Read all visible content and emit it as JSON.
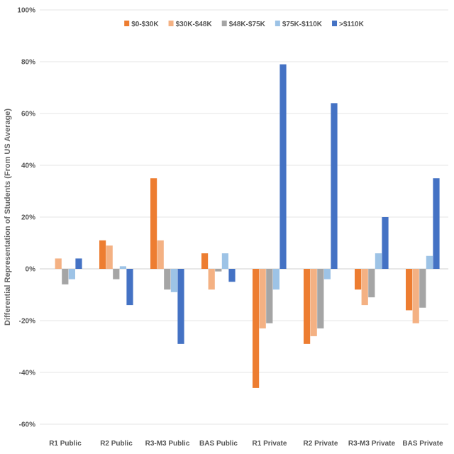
{
  "chart_data": {
    "type": "bar",
    "title": "",
    "xlabel": "",
    "ylabel": "Differential Representation of Students (From US Average)",
    "ylim": [
      -60,
      100
    ],
    "yticks": [
      -60,
      -40,
      -20,
      0,
      20,
      40,
      60,
      80,
      100
    ],
    "ytick_labels": [
      "-60%",
      "-40%",
      "-20%",
      "0%",
      "20%",
      "40%",
      "60%",
      "80%",
      "100%"
    ],
    "grid": true,
    "legend_position": "top",
    "categories": [
      "R1 Public",
      "R2 Public",
      "R3-M3 Public",
      "BAS Public",
      "R1 Private",
      "R2 Private",
      "R3-M3 Private",
      "BAS Private"
    ],
    "series": [
      {
        "name": "$0-$30K",
        "color": "#ed7d31",
        "values": [
          0,
          11,
          35,
          6,
          -46,
          -29,
          -8,
          -16
        ]
      },
      {
        "name": "$30K-$48K",
        "color": "#f4b183",
        "values": [
          4,
          9,
          11,
          -8,
          -23,
          -26,
          -14,
          -21
        ]
      },
      {
        "name": "$48K-$75K",
        "color": "#a5a5a5",
        "values": [
          -6,
          -4,
          -8,
          -1,
          -21,
          -23,
          -11,
          -15
        ]
      },
      {
        "name": "$75K-$110K",
        "color": "#9dc3e6",
        "values": [
          -4,
          1,
          -9,
          6,
          -8,
          -4,
          6,
          5
        ]
      },
      {
        "name": ">$110K",
        "color": "#4472c4",
        "values": [
          4,
          -14,
          -29,
          -5,
          79,
          64,
          20,
          35
        ]
      }
    ]
  }
}
